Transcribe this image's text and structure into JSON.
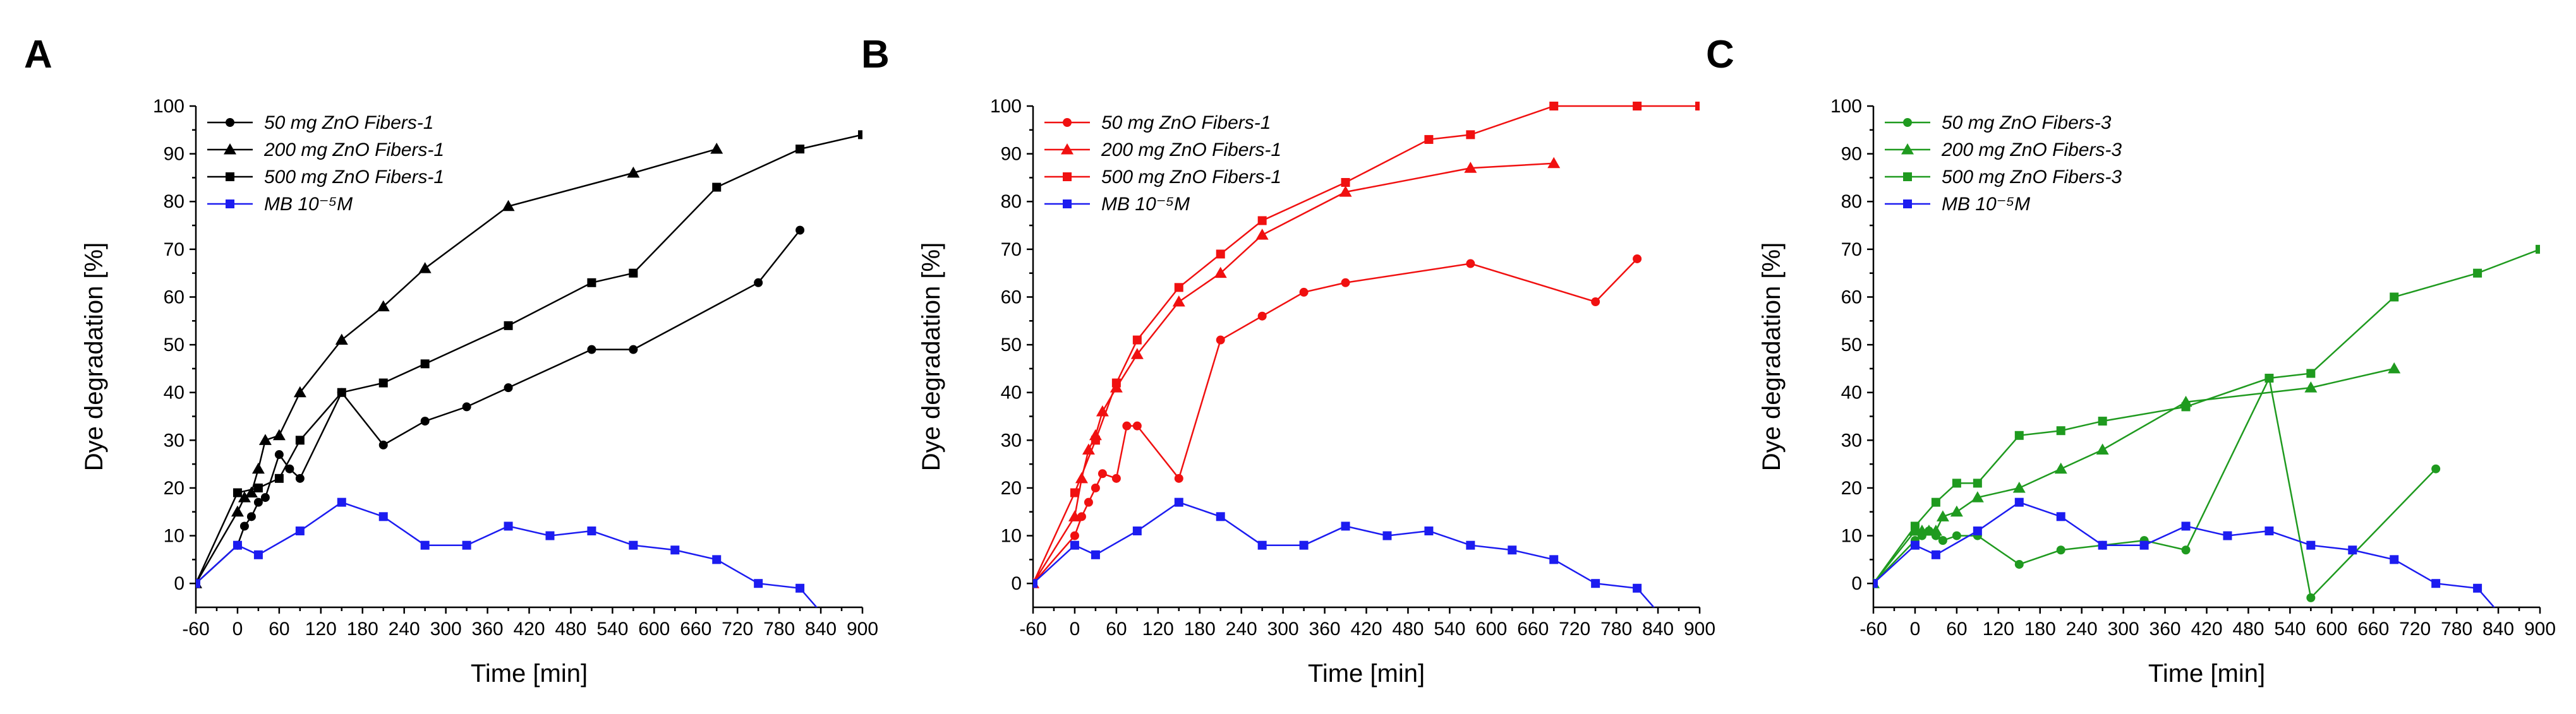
{
  "chart_data": [
    {
      "type": "line",
      "panel_label": "A",
      "xlabel": "Time [min]",
      "ylabel": "Dye degradation [%]",
      "xlim": [
        -60,
        900
      ],
      "ylim": [
        -5,
        100
      ],
      "xticks": [
        -60,
        0,
        60,
        120,
        180,
        240,
        300,
        360,
        420,
        480,
        540,
        600,
        660,
        720,
        780,
        840,
        900
      ],
      "yticks": [
        0,
        10,
        20,
        30,
        40,
        50,
        60,
        70,
        80,
        90,
        100
      ],
      "legend_position": "top-left",
      "series": [
        {
          "name": "50 mg ZnO Fibers-1",
          "color": "#000000",
          "marker": "circle",
          "x": [
            -60,
            0,
            10,
            20,
            30,
            40,
            60,
            75,
            90,
            150,
            210,
            270,
            330,
            390,
            510,
            570,
            750,
            810
          ],
          "y": [
            0,
            8,
            12,
            14,
            17,
            18,
            27,
            24,
            22,
            40,
            29,
            34,
            37,
            41,
            49,
            49,
            63,
            74
          ]
        },
        {
          "name": "200 mg ZnO Fibers-1",
          "color": "#000000",
          "marker": "triangle",
          "x": [
            -60,
            0,
            10,
            20,
            30,
            40,
            60,
            90,
            150,
            210,
            270,
            390,
            570,
            690
          ],
          "y": [
            0,
            15,
            18,
            19,
            24,
            30,
            31,
            40,
            51,
            58,
            66,
            79,
            86,
            91
          ]
        },
        {
          "name": "500 mg ZnO Fibers-1",
          "color": "#000000",
          "marker": "square",
          "x": [
            -60,
            0,
            30,
            60,
            90,
            150,
            210,
            270,
            390,
            510,
            570,
            690,
            810,
            900
          ],
          "y": [
            0,
            19,
            20,
            22,
            30,
            40,
            42,
            46,
            54,
            63,
            65,
            83,
            91,
            94
          ]
        },
        {
          "name": "MB 10⁻⁵M",
          "color": "#1c1cf0",
          "marker": "square",
          "x": [
            -60,
            0,
            30,
            90,
            150,
            210,
            270,
            330,
            390,
            450,
            510,
            570,
            630,
            690,
            750,
            810,
            840
          ],
          "y": [
            0,
            8,
            6,
            11,
            17,
            14,
            8,
            8,
            12,
            10,
            11,
            8,
            7,
            5,
            0,
            -1,
            -6
          ]
        }
      ]
    },
    {
      "type": "line",
      "panel_label": "B",
      "xlabel": "Time [min]",
      "ylabel": "Dye degradation [%]",
      "xlim": [
        -60,
        900
      ],
      "ylim": [
        -5,
        100
      ],
      "xticks": [
        -60,
        0,
        60,
        120,
        180,
        240,
        300,
        360,
        420,
        480,
        540,
        600,
        660,
        720,
        780,
        840,
        900
      ],
      "yticks": [
        0,
        10,
        20,
        30,
        40,
        50,
        60,
        70,
        80,
        90,
        100
      ],
      "legend_position": "top-left",
      "series": [
        {
          "name": "50 mg ZnO Fibers-1",
          "color": "#f01010",
          "marker": "circle",
          "x": [
            -60,
            0,
            10,
            20,
            30,
            40,
            60,
            75,
            90,
            150,
            210,
            270,
            330,
            390,
            570,
            750,
            810
          ],
          "y": [
            0,
            10,
            14,
            17,
            20,
            23,
            22,
            33,
            33,
            22,
            51,
            56,
            61,
            63,
            67,
            59,
            68
          ]
        },
        {
          "name": "200 mg ZnO Fibers-1",
          "color": "#f01010",
          "marker": "triangle",
          "x": [
            -60,
            0,
            10,
            20,
            30,
            40,
            60,
            90,
            150,
            210,
            270,
            390,
            570,
            690
          ],
          "y": [
            0,
            14,
            22,
            28,
            31,
            36,
            41,
            48,
            59,
            65,
            73,
            82,
            87,
            88
          ]
        },
        {
          "name": "500 mg ZnO Fibers-1",
          "color": "#f01010",
          "marker": "square",
          "x": [
            -60,
            0,
            30,
            60,
            90,
            150,
            210,
            270,
            390,
            510,
            570,
            690,
            810,
            900
          ],
          "y": [
            0,
            19,
            30,
            42,
            51,
            62,
            69,
            76,
            84,
            93,
            94,
            100,
            100,
            100
          ]
        },
        {
          "name": "MB 10⁻⁵M",
          "color": "#1c1cf0",
          "marker": "square",
          "x": [
            -60,
            0,
            30,
            90,
            150,
            210,
            270,
            330,
            390,
            450,
            510,
            570,
            630,
            690,
            750,
            810,
            840
          ],
          "y": [
            0,
            8,
            6,
            11,
            17,
            14,
            8,
            8,
            12,
            10,
            11,
            8,
            7,
            5,
            0,
            -1,
            -6
          ]
        }
      ]
    },
    {
      "type": "line",
      "panel_label": "C",
      "xlabel": "Time [min]",
      "ylabel": "Dye degradation [%]",
      "xlim": [
        -60,
        900
      ],
      "ylim": [
        -5,
        100
      ],
      "xticks": [
        -60,
        0,
        60,
        120,
        180,
        240,
        300,
        360,
        420,
        480,
        540,
        600,
        660,
        720,
        780,
        840,
        900
      ],
      "yticks": [
        0,
        10,
        20,
        30,
        40,
        50,
        60,
        70,
        80,
        90,
        100
      ],
      "legend_position": "top-left",
      "series": [
        {
          "name": "50 mg ZnO Fibers-3",
          "color": "#1f9a1f",
          "marker": "circle",
          "x": [
            -60,
            0,
            10,
            20,
            30,
            40,
            60,
            90,
            150,
            210,
            270,
            330,
            390,
            510,
            570,
            750
          ],
          "y": [
            0,
            9,
            10,
            11,
            10,
            9,
            10,
            10,
            4,
            7,
            8,
            9,
            7,
            43,
            -3,
            24
          ]
        },
        {
          "name": "200 mg ZnO Fibers-3",
          "color": "#1f9a1f",
          "marker": "triangle",
          "x": [
            -60,
            0,
            10,
            20,
            30,
            40,
            60,
            90,
            150,
            210,
            270,
            390,
            570,
            690
          ],
          "y": [
            0,
            11,
            11,
            11,
            11,
            14,
            15,
            18,
            20,
            24,
            28,
            38,
            41,
            45
          ]
        },
        {
          "name": "500 mg ZnO Fibers-3",
          "color": "#1f9a1f",
          "marker": "square",
          "x": [
            -60,
            0,
            30,
            60,
            90,
            150,
            210,
            270,
            390,
            510,
            570,
            690,
            810,
            900
          ],
          "y": [
            0,
            12,
            17,
            21,
            21,
            31,
            32,
            34,
            37,
            43,
            44,
            60,
            65,
            70
          ]
        },
        {
          "name": "MB 10⁻⁵M",
          "color": "#1c1cf0",
          "marker": "square",
          "x": [
            -60,
            0,
            30,
            90,
            150,
            210,
            270,
            330,
            390,
            450,
            510,
            570,
            630,
            690,
            750,
            810,
            840
          ],
          "y": [
            0,
            8,
            6,
            11,
            17,
            14,
            8,
            8,
            12,
            10,
            11,
            8,
            7,
            5,
            0,
            -1,
            -6
          ]
        }
      ]
    }
  ]
}
